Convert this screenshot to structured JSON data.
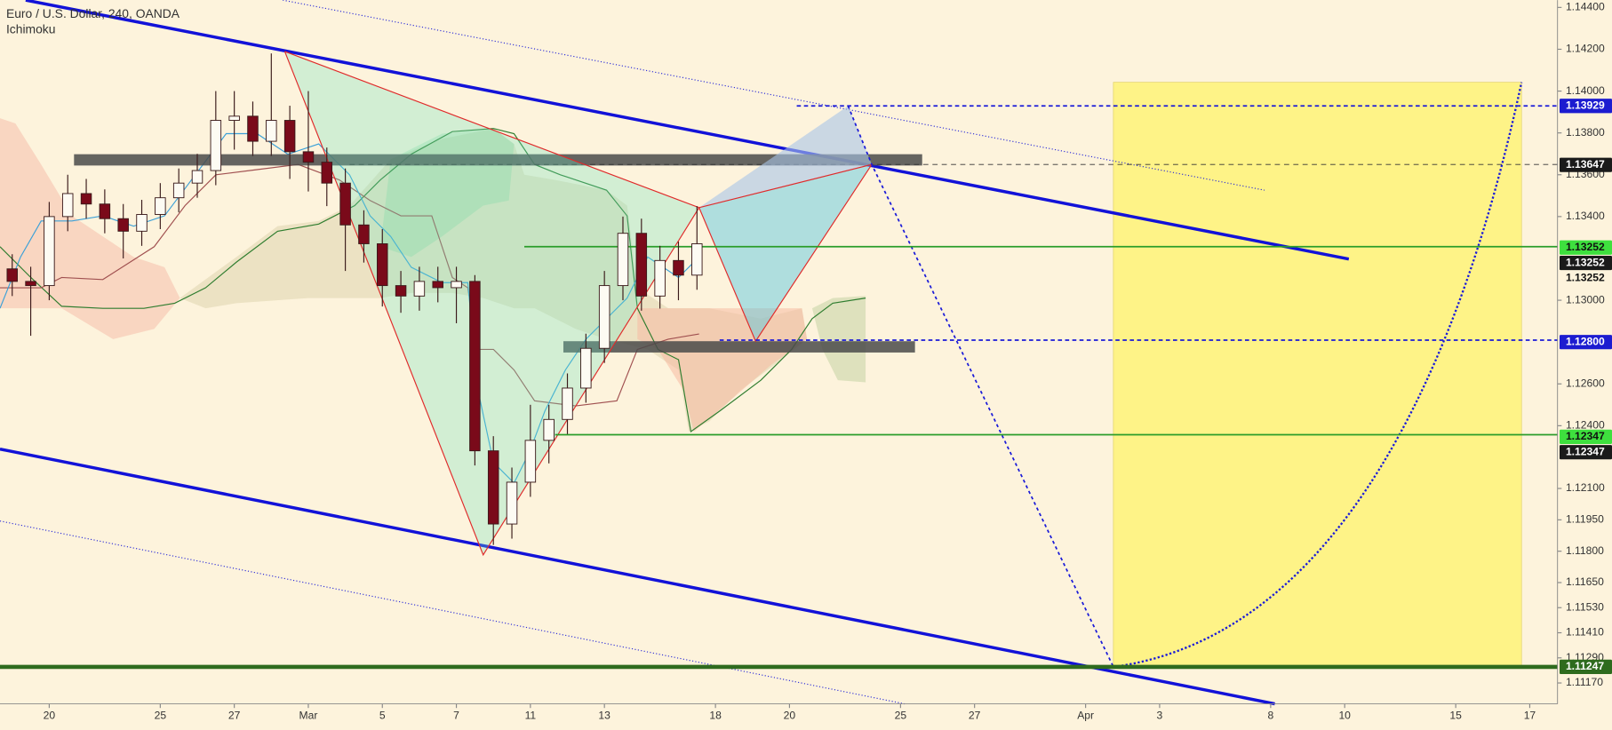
{
  "chart_data": {
    "type": "candlestick",
    "title": "Euro / U.S. Dollar, 240, OANDA",
    "subtitle": "Ichimoku",
    "x": [
      -1,
      -0.5,
      0,
      0.5,
      1,
      1.5,
      2,
      2.5,
      3,
      3.5,
      4,
      4.5,
      5,
      5.5,
      6,
      6.5,
      7,
      7.5,
      8,
      8.5,
      9,
      9.5,
      10,
      10.5,
      11,
      11.5,
      12,
      12.5,
      13,
      13.5,
      14,
      14.5,
      15,
      15.5,
      16,
      16.5,
      17,
      17.5
    ],
    "open": [
      1.1315,
      1.1309,
      1.1307,
      1.134,
      1.1351,
      1.1346,
      1.1339,
      1.1333,
      1.1341,
      1.1349,
      1.1356,
      1.1362,
      1.1386,
      1.1388,
      1.1376,
      1.1386,
      1.1371,
      1.1366,
      1.1356,
      1.1336,
      1.1327,
      1.1307,
      1.1302,
      1.1309,
      1.1306,
      1.1309,
      1.1228,
      1.1193,
      1.1213,
      1.1233,
      1.1243,
      1.1258,
      1.1277,
      1.1307,
      1.1332,
      1.1302,
      1.1319,
      1.1312
    ],
    "high": [
      1.1322,
      1.1316,
      1.1347,
      1.136,
      1.1358,
      1.1353,
      1.1346,
      1.1348,
      1.1356,
      1.1363,
      1.137,
      1.14,
      1.14,
      1.1395,
      1.1418,
      1.1393,
      1.14,
      1.1373,
      1.1363,
      1.1343,
      1.1334,
      1.1314,
      1.1316,
      1.1316,
      1.1316,
      1.1312,
      1.1235,
      1.122,
      1.125,
      1.125,
      1.1265,
      1.1284,
      1.1314,
      1.134,
      1.1339,
      1.1326,
      1.1328,
      1.1345
    ],
    "low": [
      1.1302,
      1.1283,
      1.13,
      1.1333,
      1.1339,
      1.1332,
      1.132,
      1.1326,
      1.1334,
      1.1342,
      1.1349,
      1.1355,
      1.1372,
      1.1369,
      1.1369,
      1.1358,
      1.1352,
      1.1345,
      1.1314,
      1.1318,
      1.1297,
      1.1294,
      1.1295,
      1.1299,
      1.1289,
      1.1221,
      1.1183,
      1.1186,
      1.1206,
      1.1222,
      1.1236,
      1.1251,
      1.127,
      1.13,
      1.1295,
      1.1296,
      1.13,
      1.1305
    ],
    "close": [
      1.1309,
      1.1307,
      1.134,
      1.1351,
      1.1346,
      1.1339,
      1.1333,
      1.1341,
      1.1349,
      1.1356,
      1.1362,
      1.1386,
      1.1388,
      1.1376,
      1.1386,
      1.1371,
      1.1366,
      1.1356,
      1.1336,
      1.1327,
      1.1307,
      1.1302,
      1.1309,
      1.1306,
      1.1309,
      1.1228,
      1.1193,
      1.1213,
      1.1233,
      1.1243,
      1.1258,
      1.1277,
      1.1307,
      1.1332,
      1.1302,
      1.1319,
      1.1312,
      1.1327
    ],
    "up_color": "#fdfbf3",
    "down_color": "#7a0a1a",
    "xlim": [
      -1.33,
      40.75
    ],
    "xticks": [
      {
        "value": 0,
        "label": "20"
      },
      {
        "value": 3,
        "label": "25"
      },
      {
        "value": 5,
        "label": "27"
      },
      {
        "value": 7,
        "label": "Mar"
      },
      {
        "value": 9,
        "label": "5"
      },
      {
        "value": 11,
        "label": "7"
      },
      {
        "value": 13,
        "label": "11"
      },
      {
        "value": 15,
        "label": "13"
      },
      {
        "value": 18,
        "label": "18"
      },
      {
        "value": 20,
        "label": "20"
      },
      {
        "value": 23,
        "label": "25"
      },
      {
        "value": 25,
        "label": "27"
      },
      {
        "value": 28,
        "label": "Apr"
      },
      {
        "value": 30,
        "label": "3"
      },
      {
        "value": 33,
        "label": "8"
      },
      {
        "value": 35,
        "label": "10"
      },
      {
        "value": 38,
        "label": "15"
      },
      {
        "value": 40,
        "label": "17"
      }
    ],
    "ylim": [
      1.1107,
      1.14435
    ],
    "yticks": [
      {
        "value": 1.144,
        "label": "1.14400"
      },
      {
        "value": 1.142,
        "label": "1.14200"
      },
      {
        "value": 1.14,
        "label": "1.14000"
      },
      {
        "value": 1.138,
        "label": "1.13800"
      },
      {
        "value": 1.136,
        "label": "1.13600"
      },
      {
        "value": 1.134,
        "label": "1.13400"
      },
      {
        "value": 1.13,
        "label": "1.13000"
      },
      {
        "value": 1.126,
        "label": "1.12600"
      },
      {
        "value": 1.124,
        "label": "1.12400"
      },
      {
        "value": 1.121,
        "label": "1.12100"
      },
      {
        "value": 1.1195,
        "label": "1.11950"
      },
      {
        "value": 1.118,
        "label": "1.11800"
      },
      {
        "value": 1.1165,
        "label": "1.11650"
      },
      {
        "value": 1.1153,
        "label": "1.11530"
      },
      {
        "value": 1.1141,
        "label": "1.11410"
      },
      {
        "value": 1.1129,
        "label": "1.11290"
      },
      {
        "value": 1.1117,
        "label": "1.11170"
      }
    ],
    "price_tags": [
      {
        "value": 1.13929,
        "color": "#1c1cd0"
      },
      {
        "value": 1.13647,
        "color": "#1a1a1a"
      },
      {
        "value": 1.13252,
        "color": "#3ee03e"
      },
      {
        "value": 1.13252,
        "color": "#1a1a1a"
      },
      {
        "value": 1.13252,
        "color": "none"
      },
      {
        "value": 1.128,
        "label": "1.12800",
        "color": "#1c1cd0"
      },
      {
        "value": 1.12347,
        "color": "#3ee03e"
      },
      {
        "value": 1.12347,
        "color": "#1a1a1a"
      },
      {
        "value": 1.11247,
        "color": "#2e6b1e"
      }
    ]
  }
}
